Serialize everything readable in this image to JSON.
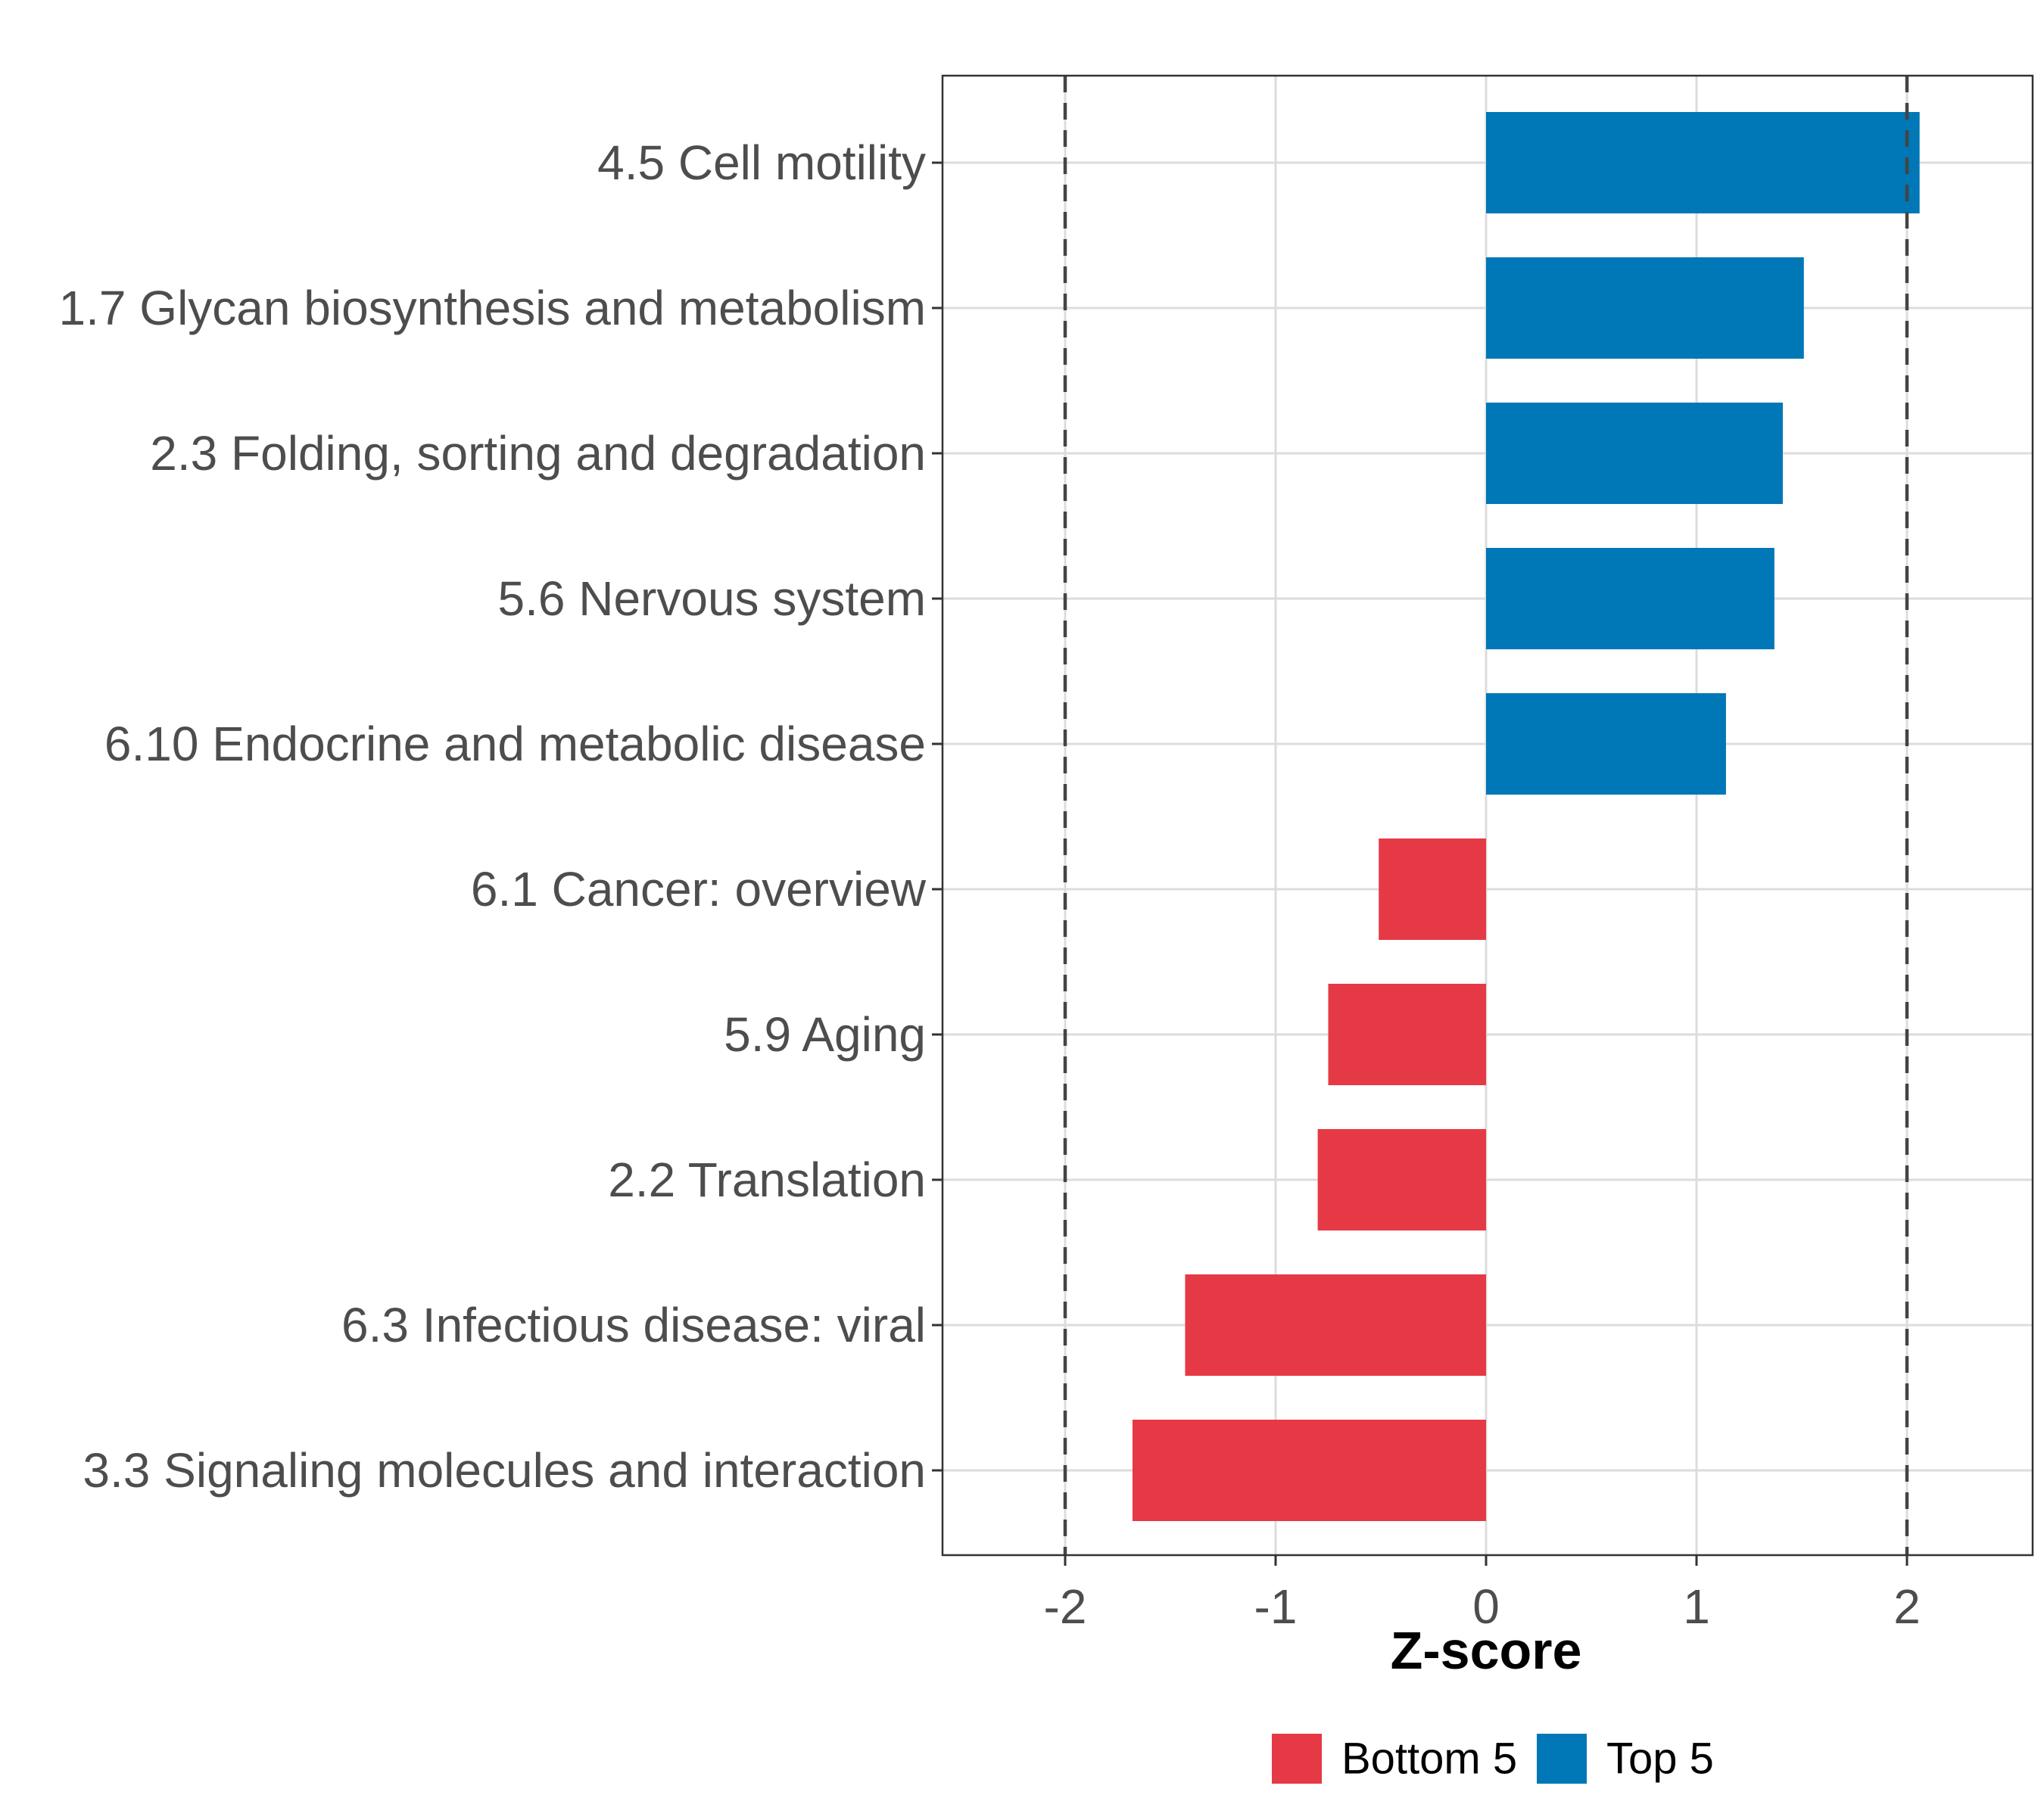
{
  "chart_data": {
    "type": "bar",
    "orientation": "horizontal",
    "xlabel": "Z-score",
    "ylabel": "",
    "xlim": [
      -2.6,
      2.6
    ],
    "xticks": [
      -2,
      -1,
      0,
      1,
      2
    ],
    "xtick_labels": [
      "-2",
      "-1",
      "0",
      "1",
      "2"
    ],
    "reference_lines": [
      -2,
      2
    ],
    "grid": true,
    "legend_position": "bottom",
    "legend": [
      {
        "name": "Bottom 5",
        "color": "#E63946"
      },
      {
        "name": "Top 5",
        "color": "#0077B6"
      }
    ],
    "categories": [
      "4.5 Cell motility",
      "1.7 Glycan biosynthesis and metabolism",
      "2.3 Folding, sorting and degradation",
      "5.6 Nervous system",
      "6.10 Endocrine and metabolic disease",
      "6.1 Cancer: overview",
      "5.9 Aging",
      "2.2 Translation",
      "6.3 Infectious disease: viral",
      "3.3 Signaling molecules and interaction"
    ],
    "values": [
      2.06,
      1.51,
      1.41,
      1.37,
      1.14,
      -0.51,
      -0.75,
      -0.8,
      -1.43,
      -1.68
    ],
    "groups": [
      "Top 5",
      "Top 5",
      "Top 5",
      "Top 5",
      "Top 5",
      "Bottom 5",
      "Bottom 5",
      "Bottom 5",
      "Bottom 5",
      "Bottom 5"
    ]
  }
}
